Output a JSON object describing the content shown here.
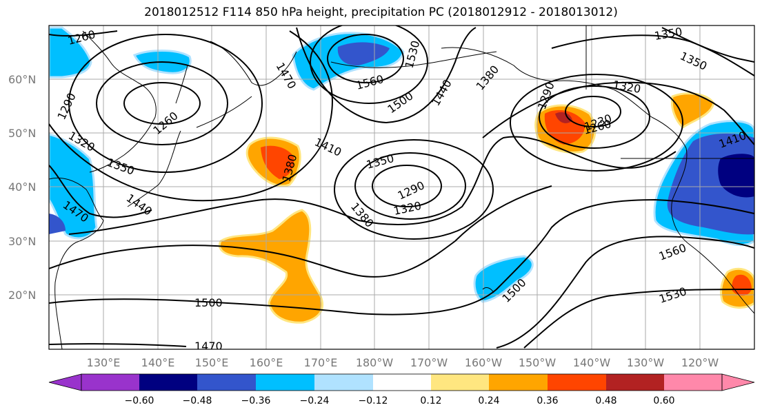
{
  "title": "2018012512 F114 850 hPa height, precipitation PC (2018012912 - 2018013012)",
  "map": {
    "lon_ticks": [
      "130°E",
      "140°E",
      "150°E",
      "160°E",
      "170°E",
      "180°W",
      "170°W",
      "160°W",
      "150°W",
      "140°W",
      "130°W",
      "120°W"
    ],
    "lat_ticks": [
      "60°N",
      "50°N",
      "40°N",
      "30°N",
      "20°N"
    ],
    "contour_labels": [
      "1260",
      "1470",
      "1290",
      "1260",
      "1320",
      "1350",
      "1440",
      "1470",
      "1560",
      "1530",
      "1500",
      "1380",
      "1440",
      "1410",
      "1380",
      "1350",
      "1290",
      "1320",
      "1380",
      "1500",
      "1290",
      "1320",
      "1230",
      "1260",
      "1350",
      "1350",
      "1410",
      "1560",
      "1530",
      "1500",
      "1470"
    ]
  },
  "colorbar": {
    "ticks": [
      "−0.60",
      "−0.48",
      "−0.36",
      "−0.24",
      "−0.12",
      "0.12",
      "0.24",
      "0.36",
      "0.48",
      "0.60"
    ],
    "colors": [
      "#9933cc",
      "#000080",
      "#3355cc",
      "#00bfff",
      "#b0e2ff",
      "#ffffff",
      "#ffe680",
      "#ffa500",
      "#ff4500",
      "#b22222",
      "#ff88aa"
    ]
  }
}
